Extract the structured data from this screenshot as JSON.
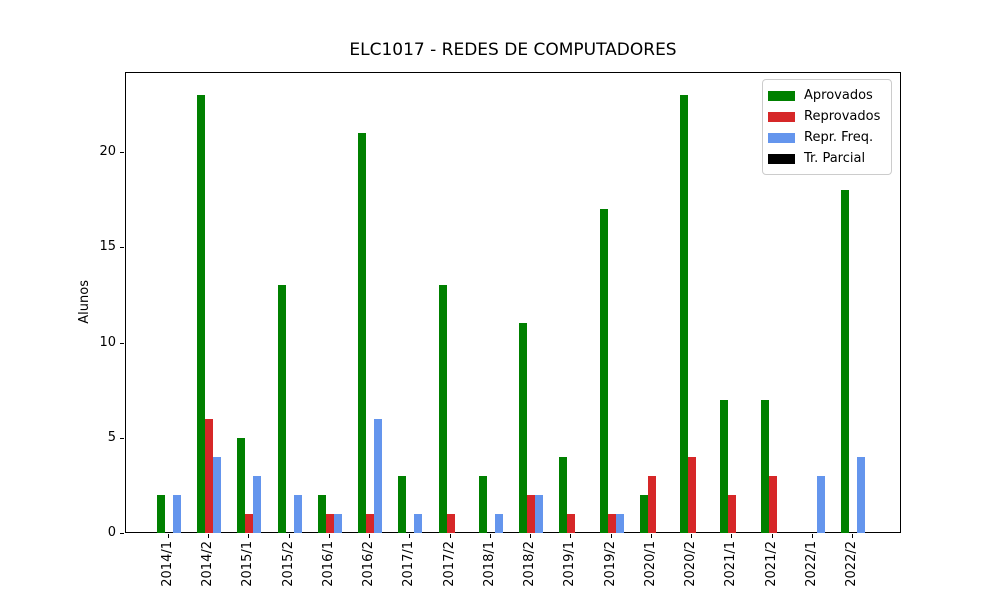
{
  "title": "ELC1017 - REDES DE COMPUTADORES",
  "ylabel": "Alunos",
  "chart_data": {
    "type": "bar",
    "title": "ELC1017 - REDES DE COMPUTADORES",
    "xlabel": "",
    "ylabel": "Alunos",
    "categories": [
      "2014/1",
      "2014/2",
      "2015/1",
      "2015/2",
      "2016/1",
      "2016/2",
      "2017/1",
      "2017/2",
      "2018/1",
      "2018/2",
      "2019/1",
      "2019/2",
      "2020/1",
      "2020/2",
      "2021/1",
      "2021/2",
      "2022/1",
      "2022/2"
    ],
    "series": [
      {
        "name": "Aprovados",
        "color": "#008000",
        "values": [
          2,
          23,
          5,
          13,
          2,
          21,
          3,
          13,
          3,
          11,
          4,
          17,
          2,
          23,
          7,
          7,
          0,
          18
        ]
      },
      {
        "name": "Reprovados",
        "color": "#d62728",
        "values": [
          0,
          6,
          1,
          0,
          1,
          1,
          0,
          1,
          0,
          2,
          1,
          1,
          3,
          4,
          2,
          3,
          0,
          0
        ]
      },
      {
        "name": "Repr. Freq.",
        "color": "#6495ed",
        "values": [
          2,
          4,
          3,
          2,
          1,
          6,
          1,
          0,
          1,
          2,
          0,
          1,
          0,
          0,
          0,
          0,
          3,
          4
        ]
      },
      {
        "name": "Tr. Parcial",
        "color": "#000000",
        "values": [
          0,
          0,
          0,
          0,
          0,
          0,
          0,
          0,
          0,
          0,
          0,
          0,
          0,
          0,
          0,
          0,
          0,
          0
        ]
      }
    ],
    "yticks": [
      0,
      5,
      10,
      15,
      20
    ],
    "ylim": [
      0,
      24.2
    ],
    "grid": false,
    "legend_position": "upper right"
  }
}
